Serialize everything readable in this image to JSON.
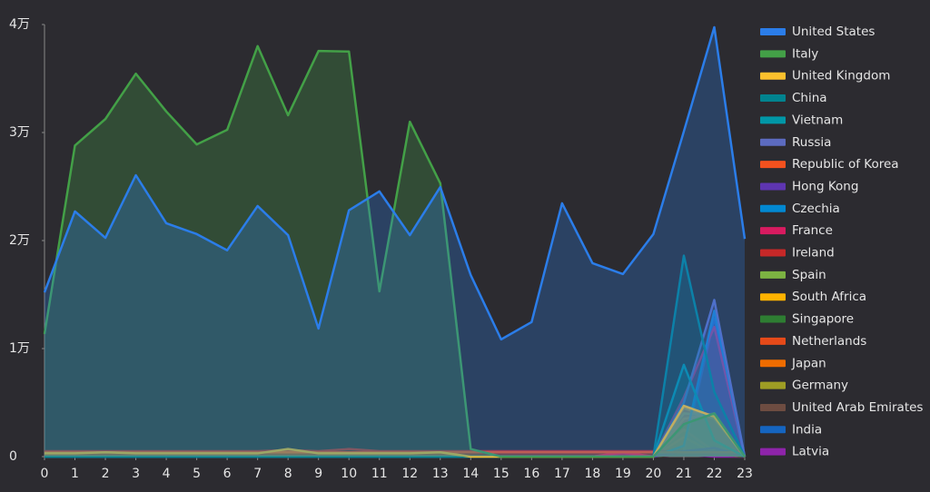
{
  "chart_data": {
    "type": "area",
    "xlim": [
      0,
      23
    ],
    "xticks": [
      0,
      1,
      2,
      3,
      4,
      5,
      6,
      7,
      8,
      9,
      10,
      11,
      12,
      13,
      14,
      15,
      16,
      17,
      18,
      19,
      20,
      21,
      22,
      23
    ],
    "ylim": [
      0,
      40000
    ],
    "yticks": [
      0,
      {
        "value": 10000,
        "label": "1万"
      },
      {
        "value": 20000,
        "label": "2万"
      },
      {
        "value": 30000,
        "label": "3万"
      },
      {
        "value": 40000,
        "label": "4万"
      }
    ],
    "x": [
      0,
      1,
      2,
      3,
      4,
      5,
      6,
      7,
      8,
      9,
      10,
      11,
      12,
      13,
      14,
      15,
      16,
      17,
      18,
      19,
      20,
      21,
      22,
      23
    ],
    "series": [
      {
        "name": "United States",
        "color": "#2b7de9",
        "values": [
          15200,
          22700,
          20250,
          26050,
          21600,
          20600,
          19100,
          23200,
          20500,
          11850,
          22800,
          24550,
          20500,
          24950,
          16800,
          10850,
          12450,
          23450,
          17900,
          16900,
          20600,
          30100,
          39750,
          20150
        ]
      },
      {
        "name": "Italy",
        "color": "#43a047",
        "values": [
          11350,
          28800,
          31250,
          35450,
          31950,
          28900,
          30250,
          38000,
          31600,
          37550,
          37500,
          15300,
          31000,
          25300,
          700,
          0,
          0,
          0,
          0,
          0,
          0,
          3000,
          4000,
          0
        ]
      },
      {
        "name": "United Kingdom",
        "color": "#fbc02d",
        "values": [
          300,
          300,
          400,
          300,
          300,
          300,
          300,
          300,
          700,
          300,
          300,
          300,
          300,
          400,
          0,
          0,
          0,
          0,
          0,
          0,
          0,
          4700,
          3700,
          0
        ]
      },
      {
        "name": "China",
        "color": "#00838f",
        "values": [
          0,
          0,
          0,
          0,
          0,
          0,
          0,
          0,
          0,
          0,
          0,
          0,
          0,
          0,
          0,
          0,
          0,
          0,
          0,
          0,
          0,
          18600,
          6000,
          0
        ]
      },
      {
        "name": "Vietnam",
        "color": "#0097a7",
        "values": [
          0,
          0,
          0,
          0,
          0,
          0,
          0,
          0,
          0,
          0,
          0,
          0,
          0,
          0,
          0,
          0,
          0,
          0,
          0,
          0,
          0,
          8500,
          1500,
          0
        ]
      },
      {
        "name": "Russia",
        "color": "#5c6bc0",
        "values": [
          0,
          0,
          0,
          0,
          0,
          0,
          0,
          0,
          0,
          0,
          0,
          0,
          0,
          0,
          0,
          0,
          0,
          0,
          0,
          0,
          0,
          5000,
          14500,
          0
        ]
      },
      {
        "name": "Republic of Korea",
        "color": "#f4511e",
        "values": [
          400,
          400,
          400,
          400,
          400,
          400,
          400,
          400,
          400,
          400,
          400,
          400,
          400,
          400,
          400,
          400,
          400,
          400,
          400,
          400,
          400,
          400,
          400,
          400
        ]
      },
      {
        "name": "Hong Kong",
        "color": "#5e35b1",
        "values": [
          0,
          0,
          0,
          0,
          0,
          0,
          0,
          0,
          0,
          0,
          0,
          0,
          0,
          0,
          0,
          0,
          0,
          0,
          0,
          0,
          0,
          500,
          800,
          0
        ]
      },
      {
        "name": "Czechia",
        "color": "#0288d1",
        "values": [
          0,
          0,
          0,
          0,
          0,
          0,
          0,
          0,
          0,
          0,
          0,
          0,
          0,
          0,
          0,
          0,
          0,
          0,
          0,
          0,
          0,
          1000,
          13500,
          0
        ]
      },
      {
        "name": "France",
        "color": "#d81b60",
        "values": [
          0,
          0,
          0,
          0,
          0,
          0,
          0,
          0,
          0,
          0,
          0,
          0,
          0,
          0,
          0,
          0,
          0,
          0,
          0,
          400,
          0,
          5500,
          12000,
          0
        ]
      },
      {
        "name": "Ireland",
        "color": "#c62828",
        "values": [
          500,
          500,
          500,
          500,
          500,
          500,
          500,
          500,
          600,
          500,
          700,
          500,
          500,
          500,
          500,
          500,
          500,
          500,
          500,
          500,
          500,
          500,
          500,
          500
        ]
      },
      {
        "name": "Spain",
        "color": "#7cb342",
        "values": [
          0,
          0,
          0,
          0,
          0,
          0,
          0,
          0,
          0,
          0,
          0,
          0,
          0,
          0,
          0,
          0,
          0,
          0,
          0,
          0,
          0,
          4000,
          3800,
          0
        ]
      },
      {
        "name": "South Africa",
        "color": "#ffb300",
        "values": [
          0,
          0,
          0,
          0,
          0,
          0,
          0,
          0,
          0,
          0,
          0,
          0,
          0,
          0,
          0,
          0,
          0,
          0,
          0,
          0,
          0,
          4500,
          3500,
          0
        ]
      },
      {
        "name": "Singapore",
        "color": "#2e7d32",
        "values": [
          0,
          0,
          0,
          0,
          0,
          0,
          0,
          0,
          0,
          0,
          0,
          0,
          0,
          0,
          0,
          0,
          0,
          0,
          0,
          0,
          0,
          300,
          300,
          0
        ]
      },
      {
        "name": "Netherlands",
        "color": "#e64a19",
        "values": [
          0,
          0,
          0,
          0,
          0,
          0,
          0,
          0,
          0,
          0,
          0,
          0,
          0,
          0,
          0,
          0,
          0,
          0,
          0,
          0,
          0,
          2500,
          500,
          0
        ]
      },
      {
        "name": "Japan",
        "color": "#ef6c00",
        "values": [
          0,
          0,
          0,
          0,
          0,
          0,
          0,
          0,
          0,
          0,
          0,
          0,
          0,
          0,
          0,
          0,
          0,
          0,
          0,
          0,
          0,
          1800,
          300,
          0
        ]
      },
      {
        "name": "Germany",
        "color": "#9e9d24",
        "values": [
          0,
          0,
          0,
          0,
          0,
          0,
          0,
          0,
          0,
          0,
          0,
          0,
          0,
          0,
          0,
          0,
          0,
          0,
          0,
          0,
          0,
          3500,
          4000,
          0
        ]
      },
      {
        "name": "United Arab Emirates",
        "color": "#6d4c41",
        "values": [
          0,
          0,
          0,
          0,
          0,
          0,
          0,
          0,
          0,
          0,
          0,
          0,
          0,
          0,
          0,
          0,
          0,
          0,
          0,
          0,
          0,
          200,
          200,
          0
        ]
      },
      {
        "name": "India",
        "color": "#1565c0",
        "values": [
          0,
          0,
          0,
          0,
          0,
          0,
          0,
          0,
          0,
          0,
          0,
          0,
          0,
          0,
          0,
          0,
          0,
          0,
          0,
          0,
          0,
          500,
          12800,
          0
        ]
      },
      {
        "name": "Latvia",
        "color": "#8e24aa",
        "values": [
          0,
          0,
          0,
          0,
          0,
          0,
          0,
          0,
          0,
          0,
          0,
          0,
          0,
          0,
          0,
          0,
          0,
          0,
          0,
          300,
          0,
          200,
          0,
          0
        ]
      }
    ]
  }
}
